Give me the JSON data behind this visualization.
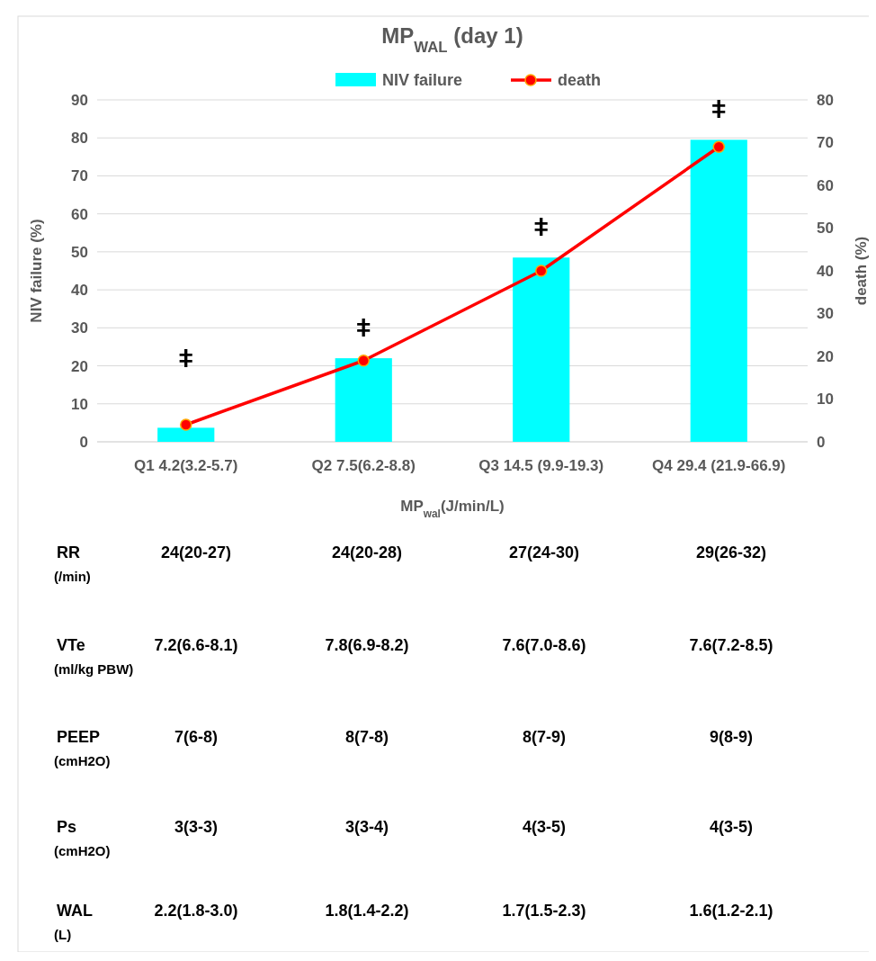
{
  "chart_data": [
    {
      "type": "bar",
      "title": "MP$_{WAL}$ (day 1)",
      "xlabel": "MP$_{wal}$(J/min/L)",
      "ylabel": "NIV failure (%)",
      "y2label": "death (%)",
      "categories": [
        "Q1 4.2(3.2-5.7)",
        "Q2 7.5(6.2-8.8)",
        "Q3 14.5 (9.9-19.3)",
        "Q4 29.4 (21.9-66.9)"
      ],
      "series": [
        {
          "name": "NIV failure",
          "type": "bar",
          "color": "#00ffff",
          "values": [
            3.7,
            22,
            48.5,
            79.5
          ]
        },
        {
          "name": "death",
          "type": "line",
          "axis": "y2",
          "color": "#ff0000",
          "values": [
            4,
            19,
            40,
            69
          ]
        }
      ],
      "ylim": [
        0,
        90
      ],
      "yticks": [
        0,
        10,
        20,
        30,
        40,
        50,
        60,
        70,
        80,
        90
      ],
      "y2lim": [
        0,
        80
      ],
      "y2ticks": [
        0,
        10,
        20,
        30,
        40,
        50,
        60,
        70,
        80
      ],
      "grid": "y",
      "legend": "top",
      "marker": "circle",
      "line_style": "solid",
      "annotations": [
        "ǂ",
        "ǂ",
        "ǂ",
        "ǂ"
      ]
    },
    {
      "type": "other",
      "annotations": [
        "RR",
        "(/min)",
        "24(20-27)",
        "24(20-28)",
        "27(24-30)",
        "29(26-32)",
        "VTe",
        "(ml/kg PBW)",
        "7.2(6.6-8.1)",
        "7.8(6.9-8.2)",
        "7.6(7.0-8.6)",
        "7.6(7.2-8.5)",
        "PEEP",
        "(cmH2O)",
        "7(6-8)",
        "8(7-8)",
        "8(7-9)",
        "9(8-9)",
        "Ps",
        "(cmH2O)",
        "3(3-3)",
        "3(3-4)",
        "4(3-5)",
        "4(3-5)",
        "WAL",
        "(L)",
        "2.2(1.8-3.0)",
        "1.8(1.4-2.2)",
        "1.7(1.5-2.3)",
        "1.6(1.2-2.1)"
      ]
    }
  ]
}
